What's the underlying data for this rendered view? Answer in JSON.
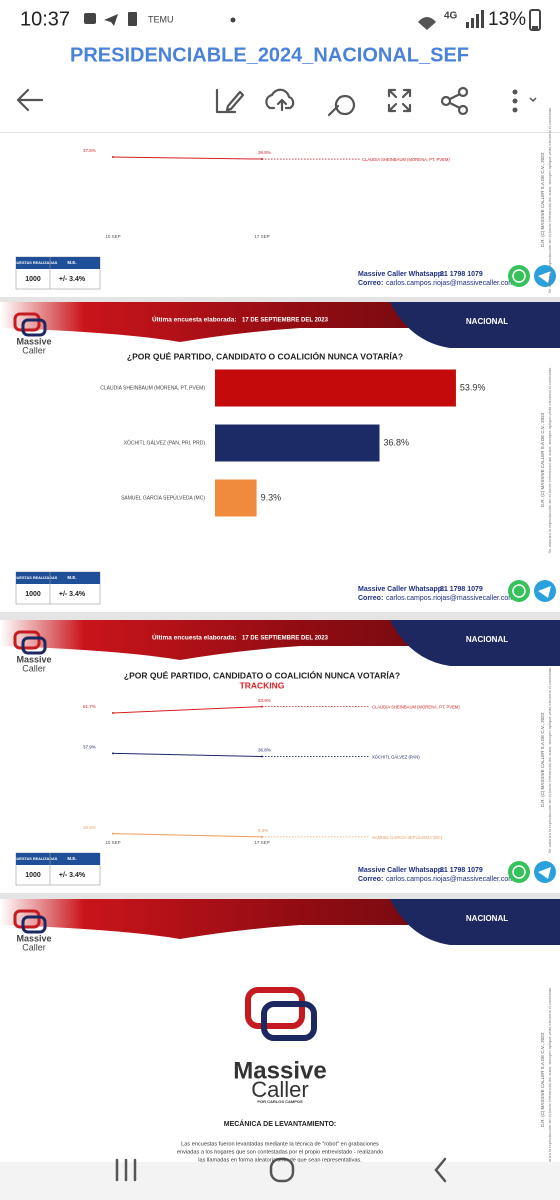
{
  "status_bar": {
    "time": "10:37",
    "battery": "13%",
    "network": "4G"
  },
  "toolbar": {
    "title": "PRESIDENCIABLE_2024_NACIONAL_SEF"
  },
  "pages": [
    {
      "footer": {
        "surveys_label": "ENCUESTAS REALIZADAS",
        "me_label": "M.E.",
        "surveys": 1000,
        "me": "+/- 3.4%",
        "whatsapp_label": "Massive Caller Whatsapp:",
        "whatsapp": "81 1798 1079",
        "email_label": "Correo:",
        "email": "carlos.campos.riojas@massivecaller.com"
      },
      "side_note": {
        "copyright": "D.R. (C) MASSIVE CALLER S.A DE C.V., 2023",
        "note": "Se autoriza la reproducción sin el hacer referencial del autor, siempre aplique veda electoral el contenido."
      }
    },
    {
      "header": {
        "brand_1": "Massive",
        "brand_2": "Caller",
        "last_survey_label": "Última encuesta elaborada:",
        "last_survey_date": "17 DE SEPTIEMBRE DEL 2023",
        "scope": "NACIONAL"
      },
      "footer": {
        "surveys_label": "ENCUESTAS REALIZADAS",
        "me_label": "M.E.",
        "surveys": 1000,
        "me": "+/- 3.4%",
        "whatsapp_label": "Massive Caller Whatsapp:",
        "whatsapp": "81 1798 1079",
        "email_label": "Correo:",
        "email": "carlos.campos.riojas@massivecaller.com"
      },
      "side_note": {
        "copyright": "D.R. (C) MASSIVE CALLER S.A DE C.V., 2023",
        "note": "Se autoriza la reproducción sin el hacer referencial del autor, siempre aplique veda electoral el contenido."
      }
    },
    {
      "header": {
        "brand_1": "Massive",
        "brand_2": "Caller",
        "last_survey_label": "Última encuesta elaborada:",
        "last_survey_date": "17 DE SEPTIEMBRE DEL 2023",
        "scope": "NACIONAL"
      },
      "footer": {
        "surveys_label": "ENCUESTAS REALIZADAS",
        "me_label": "M.E.",
        "surveys": 1000,
        "me": "+/- 3.4%",
        "whatsapp_label": "Massive Caller Whatsapp:",
        "whatsapp": "81 1798 1079",
        "email_label": "Correo:",
        "email": "carlos.campos.riojas@massivecaller.com"
      },
      "side_note": {
        "copyright": "D.R. (C) MASSIVE CALLER S.A DE C.V., 2023",
        "note": "Se autoriza la reproducción sin el hacer referencial del autor, siempre aplique veda electoral el contenido."
      }
    },
    {
      "header": {
        "brand_1": "Massive",
        "brand_2": "Caller",
        "scope": "NACIONAL"
      },
      "logo": {
        "brand_1": "Massive",
        "brand_2": "Caller",
        "byline": "POR CARLOS CAMPOS"
      },
      "section_title": "MECÁNICA DE LEVANTAMIENTO:",
      "paragraph_lines": [
        "Las encuestas fueron levantadas mediante la técnica de \"robot\" en grabaciones",
        "enviadas a los hogares que son contestadas por el propio entrevistado - realizando",
        "las llamadas en forma aleatoria a fin de que sean representativas."
      ],
      "side_note": {
        "copyright": "D.R. (C) MASSIVE CALLER S.A DE C.V., 2023",
        "note": "Se autoriza la reproducción sin el hacer referencial del autor, siempre aplique veda electoral el contenido."
      }
    }
  ],
  "chart_data": [
    {
      "type": "line",
      "x": [
        "10 SEP",
        "17 SEP"
      ],
      "series": [
        {
          "name": "CLAUDIA SHEINBAUM (MORENA, PT, PVEM)",
          "color": "#d42020",
          "values": [
            37.5,
            36.8
          ],
          "value_labels": [
            "37.5%",
            "36.8%"
          ]
        }
      ]
    },
    {
      "type": "bar",
      "title": "¿POR QUÉ PARTIDO, CANDIDATO O COALICIÓN NUNCA VOTARÍA?",
      "categories": [
        "CLAUDIA SHEINBAUM (MORENA, PT, PVEM)",
        "XÓCHITL GÁLVEZ (PAN, PRI, PRD)",
        "SAMUEL GARCÍA SEPÚLVEDA (MC)"
      ],
      "values": [
        53.9,
        36.8,
        9.3
      ],
      "value_labels": [
        "53.9%",
        "36.8%",
        "9.3%"
      ],
      "colors": [
        "#c40a0a",
        "#1c2a66",
        "#f08a3c"
      ]
    },
    {
      "type": "line",
      "title": "¿POR QUÉ PARTIDO, CANDIDATO O COALICIÓN NUNCA VOTARÍA?",
      "subtitle": "TRACKING",
      "x": [
        "10 SEP",
        "17 SEP"
      ],
      "series": [
        {
          "name": "CLAUDIA SHEINBAUM (MORENA, PT, PVEM)",
          "color": "#d42020",
          "values": [
            51.7,
            53.9
          ],
          "value_labels": [
            "51.7%",
            "53.9%"
          ]
        },
        {
          "name": "XÓCHITL GÁLVEZ (PAN)",
          "color": "#1c2a66",
          "values": [
            37.9,
            36.8
          ],
          "value_labels": [
            "37.9%",
            "36.8%"
          ]
        },
        {
          "name": "SAMUEL GARCÍA SEPÚLVEDA (MC)",
          "color": "#ee9a5a",
          "values": [
            10.4,
            9.3
          ],
          "value_labels": [
            "10.4%",
            "9.3%"
          ]
        }
      ]
    }
  ]
}
